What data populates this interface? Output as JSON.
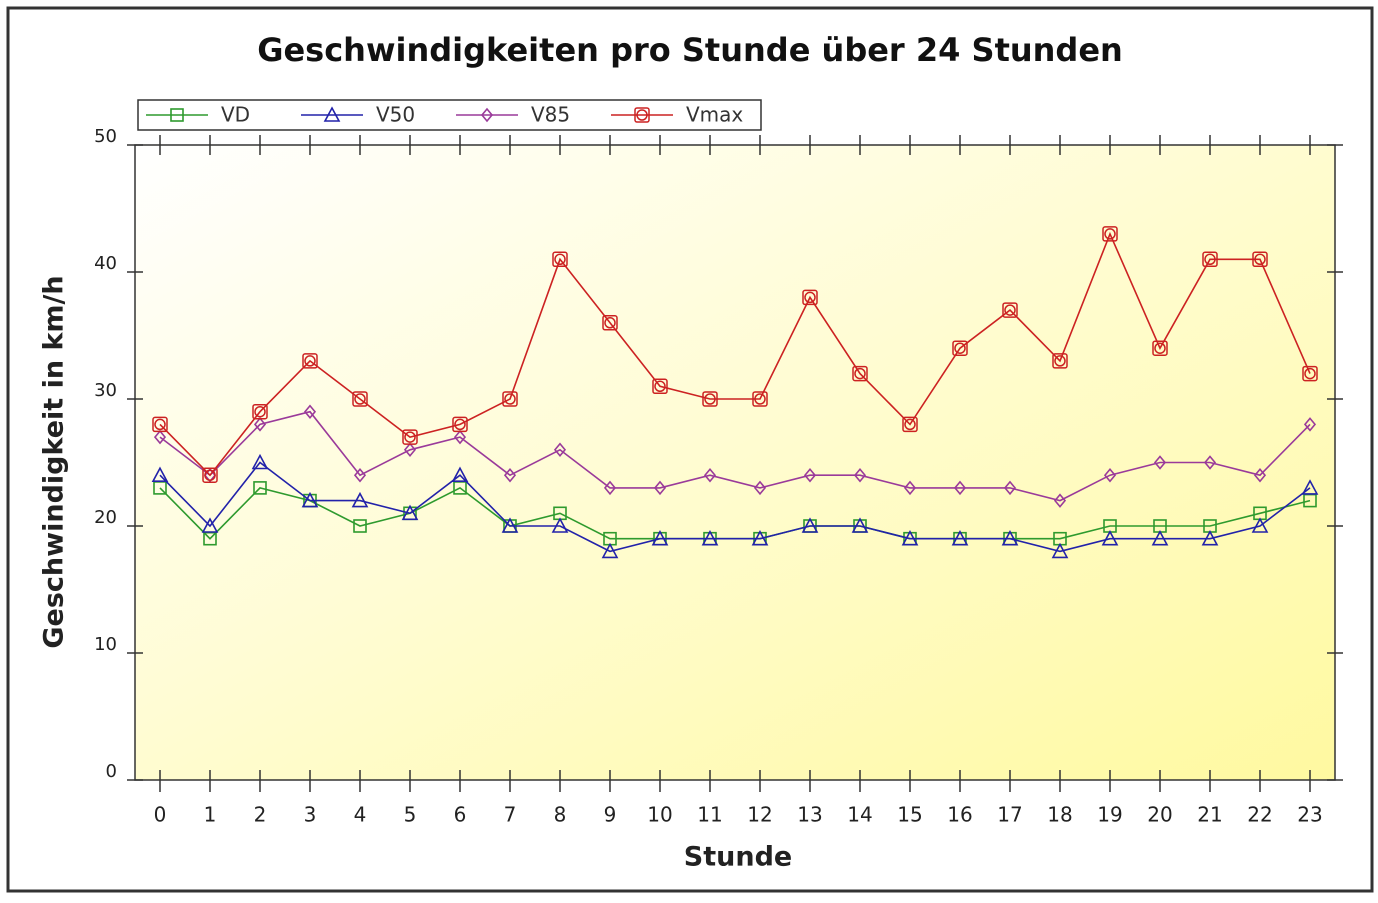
{
  "chart_data": {
    "type": "line",
    "title": "Geschwindigkeiten pro Stunde über 24 Stunden",
    "x_label": "Stunde",
    "y_label": "Geschwindigkeit in km/h",
    "x": [
      0,
      1,
      2,
      3,
      4,
      5,
      6,
      7,
      8,
      9,
      10,
      11,
      12,
      13,
      14,
      15,
      16,
      17,
      18,
      19,
      20,
      21,
      22,
      23
    ],
    "xlim": [
      -0.5,
      23.5
    ],
    "xticks": [
      0,
      1,
      2,
      3,
      4,
      5,
      6,
      7,
      8,
      9,
      10,
      11,
      12,
      13,
      14,
      15,
      16,
      17,
      18,
      19,
      20,
      21,
      22,
      23
    ],
    "ylim": [
      0,
      50
    ],
    "yticks": [
      0,
      10,
      20,
      30,
      40,
      50
    ],
    "legend": "top-left",
    "series": [
      {
        "name": "VD",
        "color": "#2e9a2e",
        "marker": "square",
        "values": [
          23,
          19,
          23,
          22,
          20,
          21,
          23,
          20,
          21,
          19,
          19,
          19,
          19,
          20,
          20,
          19,
          19,
          19,
          19,
          20,
          20,
          20,
          21,
          22
        ]
      },
      {
        "name": "V50",
        "color": "#2222aa",
        "marker": "triangle",
        "values": [
          24,
          20,
          25,
          22,
          22,
          21,
          24,
          20,
          20,
          18,
          19,
          19,
          19,
          20,
          20,
          19,
          19,
          19,
          18,
          19,
          19,
          19,
          20,
          23
        ]
      },
      {
        "name": "V85",
        "color": "#9a3a9a",
        "marker": "diamond",
        "values": [
          27,
          24,
          28,
          29,
          24,
          26,
          27,
          24,
          26,
          23,
          23,
          24,
          23,
          24,
          24,
          23,
          23,
          23,
          22,
          24,
          25,
          25,
          24,
          28
        ]
      },
      {
        "name": "Vmax",
        "color": "#cc2222",
        "marker": "circle",
        "values": [
          28,
          24,
          29,
          33,
          30,
          27,
          28,
          30,
          41,
          36,
          31,
          30,
          30,
          38,
          32,
          28,
          34,
          37,
          33,
          43,
          34,
          41,
          41,
          32
        ]
      }
    ]
  }
}
